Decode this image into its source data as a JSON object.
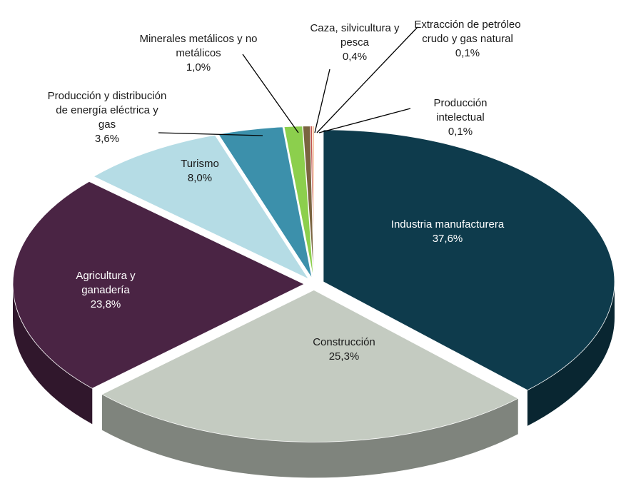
{
  "chart_data": {
    "type": "pie",
    "categories": [
      "Industria manufacturera",
      "Construcción",
      "Agricultura y ganadería",
      "Turismo",
      "Producción y distribución de energía eléctrica y gas",
      "Minerales metálicos y no metálicos",
      "Caza, silvicultura y pesca",
      "Extracción de petróleo crudo y gas natural",
      "Producción intelectual"
    ],
    "values": [
      37.6,
      25.3,
      23.8,
      8.0,
      3.6,
      1.0,
      0.4,
      0.1,
      0.1
    ],
    "value_labels": [
      "37,6%",
      "25,3%",
      "23,8%",
      "8,0%",
      "3,6%",
      "1,0%",
      "0,4%",
      "0,1%",
      "0,1%"
    ],
    "colors": [
      "#0e3b4c",
      "#c4cbc1",
      "#4a2444",
      "#b5dce5",
      "#3c90ab",
      "#8ccf4d",
      "#7a6440",
      "#c0504d",
      "#f2b07e"
    ]
  }
}
